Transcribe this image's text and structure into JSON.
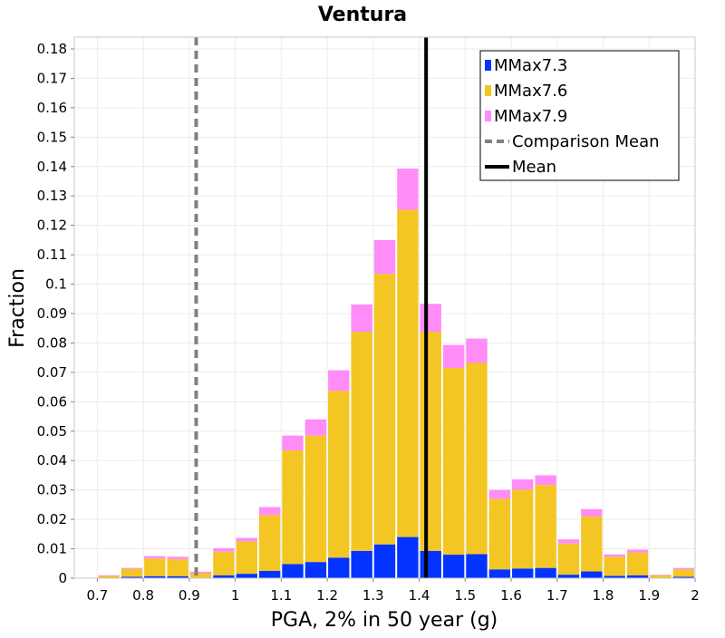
{
  "chart_data": {
    "type": "bar",
    "stacked": true,
    "title": "Ventura",
    "xlabel": "PGA, 2% in 50 year (g)",
    "ylabel": "Fraction",
    "xlim": [
      0.65,
      2.0
    ],
    "ylim": [
      0,
      0.184
    ],
    "x_ticks": [
      "0.7",
      "0.8",
      "0.9",
      "1",
      "1.1",
      "1.2",
      "1.3",
      "1.4",
      "1.5",
      "1.6",
      "1.7",
      "1.8",
      "1.9",
      "2"
    ],
    "y_ticks": [
      "0",
      "0.01",
      "0.02",
      "0.03",
      "0.04",
      "0.05",
      "0.06",
      "0.07",
      "0.08",
      "0.09",
      "0.1",
      "0.11",
      "0.12",
      "0.13",
      "0.14",
      "0.15",
      "0.16",
      "0.17",
      "0.18"
    ],
    "grid": true,
    "bin_width": 0.05,
    "x": [
      0.725,
      0.775,
      0.825,
      0.875,
      0.925,
      0.975,
      1.025,
      1.075,
      1.125,
      1.175,
      1.225,
      1.275,
      1.325,
      1.375,
      1.425,
      1.475,
      1.525,
      1.575,
      1.625,
      1.675,
      1.725,
      1.775,
      1.825,
      1.875,
      1.925,
      1.975
    ],
    "series": [
      {
        "name": "MMax7.3",
        "color": "#0433ff",
        "values": [
          0.0,
          0.0005,
          0.0007,
          0.0007,
          0.0002,
          0.001,
          0.0015,
          0.0025,
          0.0048,
          0.0055,
          0.007,
          0.0093,
          0.0115,
          0.014,
          0.0093,
          0.008,
          0.0082,
          0.003,
          0.0033,
          0.0035,
          0.0012,
          0.0023,
          0.0008,
          0.001,
          0.0002,
          0.0005
        ]
      },
      {
        "name": "MMax7.6",
        "color": "#f3c623",
        "values": [
          0.0008,
          0.0027,
          0.006,
          0.0058,
          0.0015,
          0.008,
          0.011,
          0.019,
          0.0387,
          0.043,
          0.0567,
          0.0745,
          0.092,
          0.1113,
          0.0745,
          0.0635,
          0.065,
          0.024,
          0.0268,
          0.0282,
          0.0106,
          0.0187,
          0.0065,
          0.0077,
          0.0008,
          0.0025
        ]
      },
      {
        "name": "MMax7.9",
        "color": "#ff8cf7",
        "values": [
          0.0002,
          0.0003,
          0.0008,
          0.0008,
          0.0005,
          0.0012,
          0.0012,
          0.0027,
          0.005,
          0.0055,
          0.007,
          0.0093,
          0.0115,
          0.014,
          0.0095,
          0.0078,
          0.0083,
          0.003,
          0.0035,
          0.0033,
          0.0014,
          0.0025,
          0.0008,
          0.001,
          0.0002,
          0.0005
        ]
      }
    ],
    "lines": [
      {
        "name": "Comparison Mean",
        "x": 0.915,
        "style": "dashed",
        "color": "#808080"
      },
      {
        "name": "Mean",
        "x": 1.415,
        "style": "solid",
        "color": "#000000"
      }
    ],
    "legend_position": "top-right"
  }
}
